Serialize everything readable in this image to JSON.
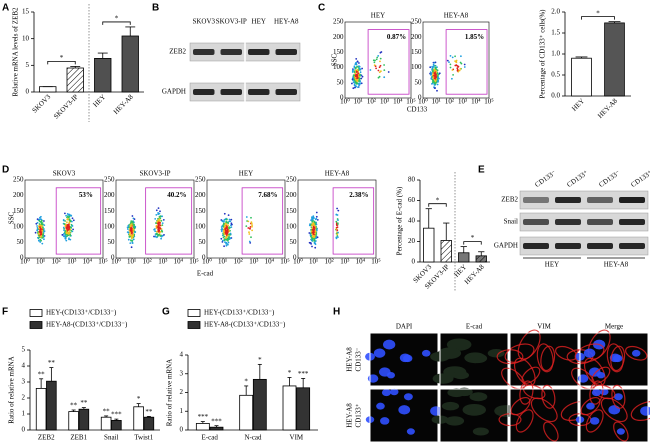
{
  "panel_labels": [
    "A",
    "B",
    "C",
    "D",
    "E",
    "F",
    "G",
    "H"
  ],
  "blot_b": {
    "lanes": [
      "SKOV3",
      "SKOV3-IP",
      "HEY",
      "HEY-A8"
    ],
    "rows": [
      "ZEB2",
      "GAPDH"
    ]
  },
  "flow_c": {
    "samples": [
      {
        "name": "HEY",
        "percent": "0.87%"
      },
      {
        "name": "HEY-A8",
        "percent": "1.85%"
      }
    ],
    "x_label": "CD133",
    "y_label": "SSC",
    "x_ticks": [
      "10⁰",
      "10¹",
      "10²",
      "10³",
      "10⁴",
      "10⁵"
    ],
    "y_ticks": [
      "0",
      "50",
      "100",
      "150",
      "200",
      "250"
    ]
  },
  "flow_d": {
    "samples": [
      {
        "name": "SKOV3",
        "percent": "53%"
      },
      {
        "name": "SKOV3-IP",
        "percent": "40.2%"
      },
      {
        "name": "HEY",
        "percent": "7.68%"
      },
      {
        "name": "HEY-A8",
        "percent": "2.38%"
      }
    ],
    "x_label": "E-cad",
    "y_label": "SSC",
    "x_ticks": [
      "10⁰",
      "10¹",
      "10²",
      "10³",
      "10⁴",
      "10⁵"
    ],
    "y_ticks": [
      "0",
      "50",
      "100",
      "150",
      "200",
      "250"
    ]
  },
  "blot_e": {
    "lanes": [
      "CD133⁻",
      "CD133⁺",
      "CD133⁻",
      "CD133⁺"
    ],
    "groups": [
      "HEY",
      "HEY-A8"
    ],
    "rows": [
      "ZEB2",
      "Snail",
      "GAPDH"
    ]
  },
  "micro_h": {
    "columns": [
      "DAPI",
      "E-cad",
      "VIM",
      "Merge"
    ],
    "rows": [
      [
        "HEY-A8",
        "CD133⁻"
      ],
      [
        "HEY-A8",
        "CD133⁺"
      ]
    ]
  },
  "chart_data": [
    {
      "type": "bar",
      "y_label": "Relative mRNA levels of ZEB2",
      "categories": [
        "SKOV3",
        "SKOV3-IP",
        "HEY",
        "HEY-A8"
      ],
      "values": [
        1,
        4.5,
        6.3,
        10.5
      ],
      "errors": [
        0,
        0.3,
        1,
        1.7
      ],
      "colors": [
        "#ffffff",
        "#ffffff",
        "#505050",
        "#505050"
      ],
      "hatched": [
        false,
        true,
        false,
        false
      ],
      "ylim": [
        0,
        15
      ],
      "yticks": [
        0,
        5,
        10,
        15
      ],
      "annotations": [
        "*",
        "*"
      ]
    },
    {
      "type": "bar",
      "y_label": "Percentage of CD133⁺ cells(%)",
      "categories": [
        "HEY",
        "HEY-A8"
      ],
      "values": [
        0.9,
        1.74
      ],
      "errors": [
        0.03,
        0.03
      ],
      "colors": [
        "#ffffff",
        "#555555"
      ],
      "hatched": [
        false,
        false
      ],
      "ylim": [
        0,
        2
      ],
      "yticks": [
        {
          "value": 0,
          "label": "0.0"
        },
        0.5,
        {
          "value": 1,
          "label": "1.0"
        },
        1.5,
        {
          "value": 2,
          "label": "2.0"
        }
      ],
      "annotations": [
        "*"
      ]
    },
    {
      "type": "bar",
      "y_label": "Percentage of E-cad (%)",
      "categories": [
        "SKOV3",
        "SKOV3-IP",
        "HEY",
        "HEY-A8"
      ],
      "values": [
        33,
        21,
        9,
        6
      ],
      "errors": [
        19,
        17,
        6,
        4
      ],
      "colors": [
        "#ffffff",
        "#ffffff",
        "#777777",
        "#777777"
      ],
      "hatched": [
        false,
        true,
        false,
        true
      ],
      "ylim": [
        0,
        80
      ],
      "yticks": [
        0,
        20,
        40,
        60,
        80
      ],
      "annotations": [
        "*",
        "*"
      ]
    },
    {
      "type": "grouped-bar",
      "y_label": "Ratio of relative mRNA",
      "categories": [
        "ZEB2",
        "ZEB1",
        "Snail",
        "Twist1"
      ],
      "series": [
        {
          "name": "HEY-(CD133⁺/CD133⁻)",
          "color": "#ffffff",
          "values": [
            2.6,
            1.15,
            0.8,
            1.45
          ],
          "errors": [
            0.6,
            0.1,
            0.08,
            0.2
          ],
          "star_labels": [
            "**",
            "**",
            "**",
            "*"
          ]
        },
        {
          "name": "HEY-A8-(CD133⁺/CD133⁻)",
          "color": "#333333",
          "values": [
            3.05,
            1.3,
            0.6,
            0.8
          ],
          "errors": [
            0.85,
            0.1,
            0.08,
            0.05
          ],
          "star_labels": [
            "**",
            "**",
            "***",
            "**"
          ]
        }
      ],
      "ylim": [
        0,
        5
      ],
      "yticks": [
        0,
        1,
        2,
        3,
        4,
        5
      ]
    },
    {
      "type": "grouped-bar",
      "y_label": "Ratio of relative mRNA",
      "categories": [
        "E-cad",
        "N-cad",
        "VIM"
      ],
      "series": [
        {
          "name": "HEY-(CD133⁺/CD133⁻)",
          "color": "#ffffff",
          "values": [
            0.35,
            1.85,
            2.35
          ],
          "errors": [
            0.1,
            0.5,
            0.45
          ],
          "star_labels": [
            "***",
            "*",
            "*"
          ]
        },
        {
          "name": "HEY-A8-(CD133⁺/CD133⁻)",
          "color": "#333333",
          "values": [
            0.15,
            2.7,
            2.25
          ],
          "errors": [
            0.08,
            0.8,
            0.5
          ],
          "star_labels": [
            "***",
            "*",
            "***"
          ]
        }
      ],
      "ylim": [
        0,
        4
      ],
      "yticks": [
        0,
        1,
        2,
        3,
        4
      ]
    }
  ]
}
